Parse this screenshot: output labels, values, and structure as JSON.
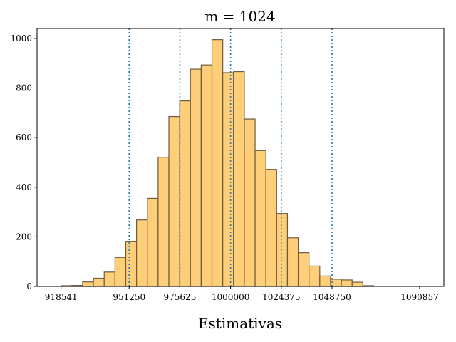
{
  "chart_data": {
    "type": "bar",
    "title": "m = 1024",
    "xlabel": "Estimativas",
    "ylabel": "",
    "xlim": [
      907000,
      1102500
    ],
    "ylim": [
      0,
      1040
    ],
    "bin_start": 918541,
    "bin_width": 5180.3,
    "values": [
      3,
      4,
      18,
      33,
      58,
      117,
      182,
      268,
      355,
      521,
      685,
      748,
      876,
      893,
      995,
      862,
      866,
      675,
      548,
      472,
      294,
      196,
      136,
      82,
      42,
      29,
      26,
      17,
      3
    ],
    "x_ticks": [
      918541,
      951250,
      975625,
      1000000,
      1024375,
      1048750,
      1090857
    ],
    "x_tick_labels": [
      "918541",
      "951250",
      "975625",
      "1000000",
      "1024375",
      "1048750",
      "1090857"
    ],
    "y_ticks": [
      0,
      200,
      400,
      600,
      800,
      1000
    ],
    "y_tick_labels": [
      "0",
      "200",
      "400",
      "600",
      "800",
      "1000"
    ],
    "vertical_lines": [
      951250,
      975625,
      1000000,
      1024375,
      1048750
    ],
    "colors": {
      "bar_fill": "#fecf78",
      "bar_edge": "#6e5a3e",
      "reference_lines": "#1f77b4"
    },
    "grid": false
  }
}
